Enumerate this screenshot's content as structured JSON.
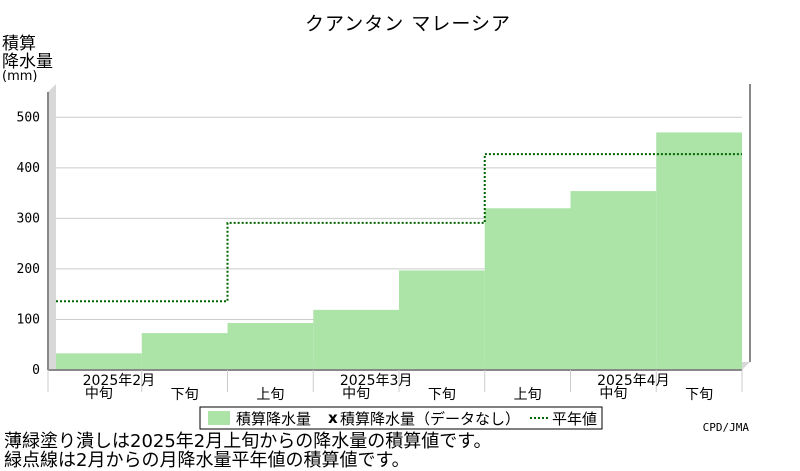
{
  "chart_data": {
    "type": "bar",
    "title": "クアンタン マレーシア",
    "ylabel_lines": [
      "積算",
      "降水量"
    ],
    "yunit": "(mm)",
    "ylim": [
      0,
      550
    ],
    "yticks": [
      0,
      100,
      200,
      300,
      400,
      500
    ],
    "grid": true,
    "periods": [
      "2月中旬",
      "2月下旬",
      "3月上旬",
      "3月中旬",
      "3月下旬",
      "4月上旬",
      "4月中旬",
      "4月下旬"
    ],
    "x_tick_labels": [
      "中旬",
      "下旬",
      "上旬",
      "中旬",
      "下旬",
      "上旬",
      "中旬",
      "下旬"
    ],
    "x_group_labels": [
      "2025年2月",
      "2025年3月",
      "2025年4月"
    ],
    "series": [
      {
        "name": "積算降水量",
        "kind": "filled-step",
        "color": "#ace4a8",
        "values": [
          33,
          73,
          93,
          119,
          197,
          320,
          354,
          470
        ]
      },
      {
        "name": "積算降水量（データなし）",
        "kind": "marker",
        "marker": "x",
        "values": []
      },
      {
        "name": "平年値",
        "kind": "dotted-step",
        "color": "#006400",
        "values": [
          136,
          136,
          291,
          291,
          291,
          427,
          427,
          427
        ]
      }
    ],
    "source": "CPD/JMA"
  },
  "notes": [
    "薄緑塗り潰しは2025年2月上旬からの降水量の積算値です。",
    "緑点線は2月からの月降水量平年値の積算値です。"
  ]
}
